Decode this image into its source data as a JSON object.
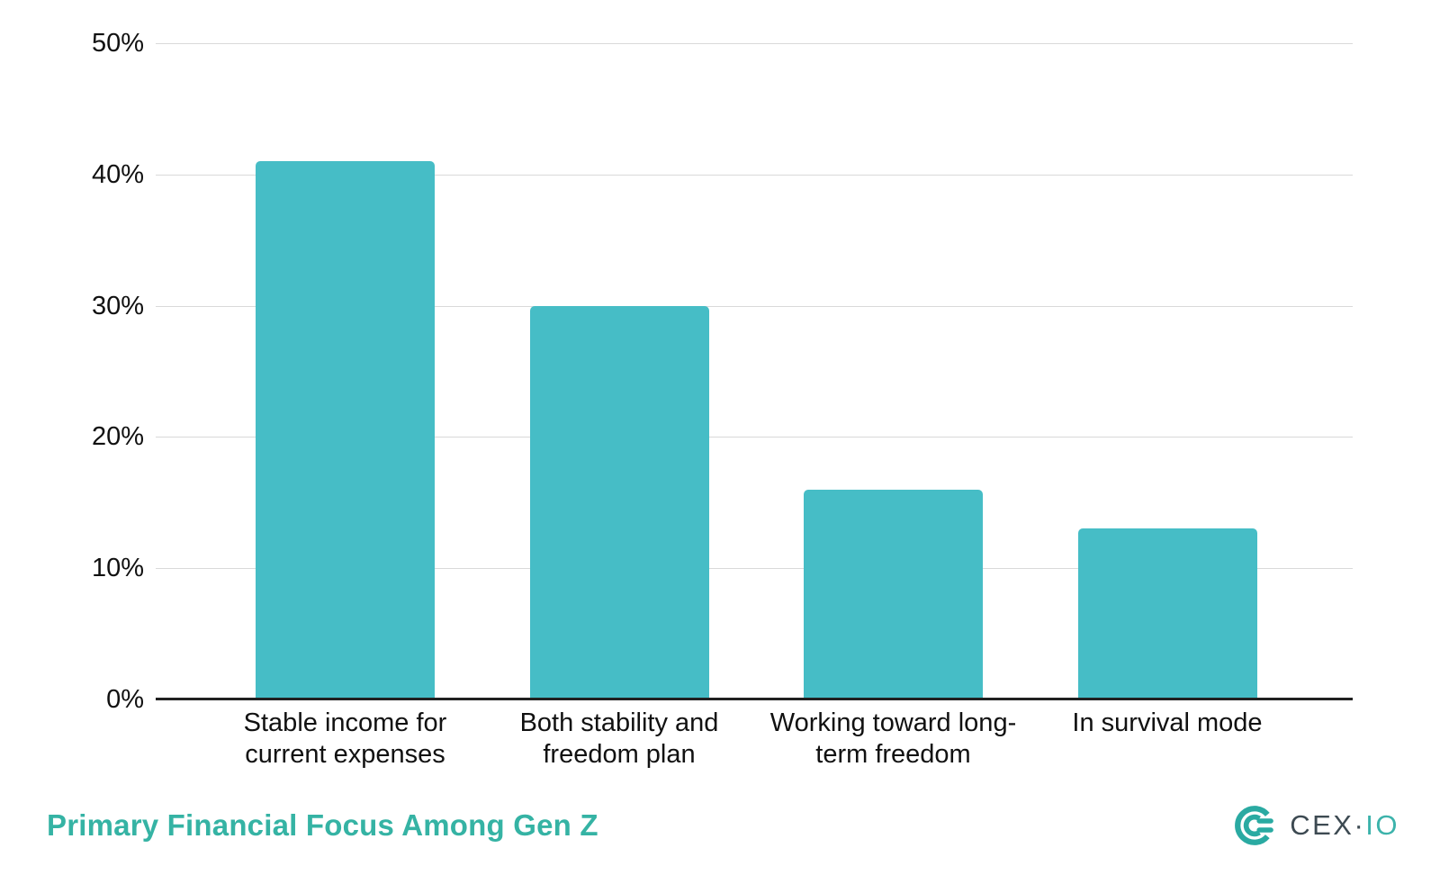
{
  "chart_data": {
    "type": "bar",
    "title": "Primary Financial Focus Among Gen Z",
    "categories": [
      "Stable income for current expenses",
      "Both stability and freedom plan",
      "Working toward long-term freedom",
      "In survival mode"
    ],
    "values": [
      41,
      30,
      16,
      13
    ],
    "unit": "%",
    "xlabel": "",
    "ylabel": "",
    "ylim": [
      0,
      50
    ],
    "ytick_step": 10,
    "yticks": [
      "0%",
      "10%",
      "20%",
      "30%",
      "40%",
      "50%"
    ],
    "grid": true,
    "legend": "none",
    "bar_color": "#46bdc6",
    "gridline_color": "#d9d9d9",
    "axis_color": "#212121"
  },
  "branding": {
    "title_color": "#35b3a4",
    "logo_text_primary": "CEX",
    "logo_separator": "·",
    "logo_text_secondary": "IO",
    "logo_mark_color": "#2aaaa2",
    "logo_primary_text_color": "#3d4a52",
    "logo_secondary_text_color": "#3cb3ab"
  }
}
